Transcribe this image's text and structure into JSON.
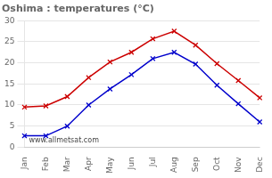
{
  "chart_data": {
    "type": "line",
    "title": "Oshima : temperatures (°C)",
    "categories": [
      "Jan",
      "Feb",
      "Mar",
      "Apr",
      "May",
      "Jun",
      "Jul",
      "Aug",
      "Sep",
      "Oct",
      "Nov",
      "Dec"
    ],
    "series": [
      {
        "color": "#cc0000",
        "marker": "x",
        "values": [
          9.5,
          9.8,
          12.0,
          16.5,
          20.2,
          22.5,
          25.7,
          27.5,
          24.2,
          19.8,
          15.8,
          11.7
        ]
      },
      {
        "color": "#0000cc",
        "marker": "x",
        "values": [
          2.7,
          2.7,
          5.0,
          10.0,
          13.8,
          17.2,
          21.0,
          22.5,
          19.7,
          14.7,
          10.3,
          6.0
        ]
      }
    ],
    "ylim": [
      0,
      30
    ],
    "yticks": [
      0,
      5,
      10,
      15,
      20,
      25,
      30
    ],
    "grid": "y",
    "annotations": [
      "www.allmetsat.com"
    ]
  }
}
